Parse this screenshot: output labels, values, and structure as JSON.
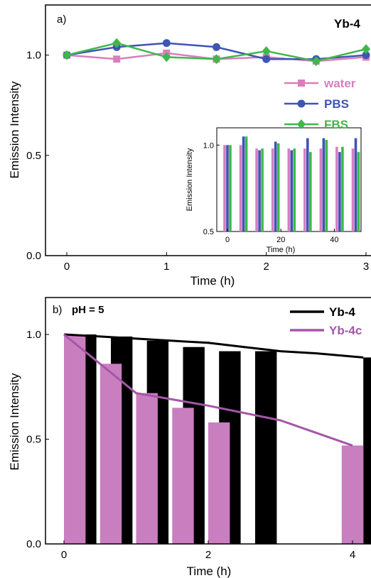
{
  "chart_data": [
    {
      "type": "line",
      "panel_label": "a)",
      "title": "Yb-4",
      "xlabel": "Time (h)",
      "ylabel": "Emission Intensity",
      "xlim": [
        -0.1,
        3.0
      ],
      "ylim": [
        0.0,
        1.25
      ],
      "xticks": [
        0,
        1,
        2,
        3
      ],
      "xtick_labels": [
        "0",
        "1",
        "2",
        "3"
      ],
      "yticks": [
        0.0,
        0.5,
        1.0
      ],
      "ytick_labels": [
        "0.0",
        "0.5",
        "1.0"
      ],
      "legend_position": "right",
      "x": [
        0,
        0.5,
        1,
        1.5,
        2,
        2.5,
        3
      ],
      "series": [
        {
          "name": "water",
          "color": "#d97ebd",
          "marker": "square",
          "values": [
            1.0,
            0.98,
            1.01,
            0.98,
            0.99,
            0.97,
            0.99
          ]
        },
        {
          "name": "PBS",
          "color": "#3e55b3",
          "marker": "circle",
          "values": [
            1.0,
            1.04,
            1.06,
            1.04,
            0.98,
            0.98,
            1.0
          ]
        },
        {
          "name": "FBS",
          "color": "#3fb84a",
          "marker": "diamond",
          "values": [
            1.0,
            1.06,
            0.99,
            0.98,
            1.02,
            0.97,
            1.03
          ]
        }
      ],
      "inset": {
        "type": "bar",
        "xlabel": "Time (h)",
        "ylabel": "Emission Intensity",
        "xlim": [
          -4,
          50
        ],
        "ylim": [
          0.5,
          1.1
        ],
        "xticks": [
          0,
          20,
          40
        ],
        "xtick_labels": [
          "0",
          "20",
          "40"
        ],
        "yticks": [
          0.5,
          1.0
        ],
        "ytick_labels": [
          "0.5",
          "1.0"
        ],
        "x": [
          0,
          6,
          12,
          18,
          24,
          30,
          36,
          42,
          48
        ],
        "series": [
          {
            "name": "water",
            "color": "#d97ebd",
            "values": [
              1.0,
              1.0,
              0.98,
              0.98,
              0.98,
              0.98,
              0.98,
              0.99,
              0.98
            ]
          },
          {
            "name": "PBS",
            "color": "#3e55b3",
            "values": [
              1.0,
              1.05,
              0.97,
              1.02,
              0.97,
              1.04,
              1.04,
              0.96,
              1.04
            ]
          },
          {
            "name": "FBS",
            "color": "#3fb84a",
            "values": [
              1.0,
              1.05,
              0.98,
              1.01,
              0.98,
              0.96,
              1.03,
              0.99,
              0.96
            ]
          }
        ]
      }
    },
    {
      "type": "bar",
      "panel_label": "b)",
      "annotation": "pH = 5",
      "xlabel": "Time (h)",
      "ylabel": "Emission Intensity",
      "xlim": [
        -0.2,
        4.15
      ],
      "ylim": [
        0.0,
        1.2
      ],
      "xticks": [
        0,
        2,
        4
      ],
      "xtick_labels": [
        "0",
        "2",
        "4"
      ],
      "yticks": [
        0.0,
        0.5,
        1.0
      ],
      "ytick_labels": [
        "0.0",
        "0.5",
        "1.0"
      ],
      "legend_position": "top-right",
      "bar_width": 0.3,
      "series": [
        {
          "name": "Yb-4",
          "color": "#000000",
          "x": [
            0.15,
            0.65,
            1.15,
            1.65,
            2.15,
            2.65,
            4.15
          ],
          "values": [
            1.0,
            0.99,
            0.97,
            0.94,
            0.92,
            0.92,
            0.89
          ]
        },
        {
          "name": "Yb-4c",
          "color": "#c97ec0",
          "line_color": "#a457a6",
          "x": [
            0,
            0.5,
            1.0,
            1.5,
            2.0,
            3.85
          ],
          "values": [
            1.0,
            0.86,
            0.72,
            0.65,
            0.58,
            0.47
          ]
        }
      ],
      "fit_lines": [
        {
          "name": "Yb-4",
          "color": "#000000",
          "x": [
            0,
            0.5,
            1,
            1.5,
            2,
            2.5,
            3,
            3.5,
            4.15
          ],
          "values": [
            1.0,
            0.99,
            0.98,
            0.97,
            0.96,
            0.94,
            0.92,
            0.91,
            0.89
          ]
        },
        {
          "name": "Yb-4c",
          "color": "#a457a6",
          "x": [
            0,
            1,
            2,
            3,
            4
          ],
          "values": [
            1.0,
            0.72,
            0.66,
            0.59,
            0.47
          ]
        }
      ]
    }
  ]
}
